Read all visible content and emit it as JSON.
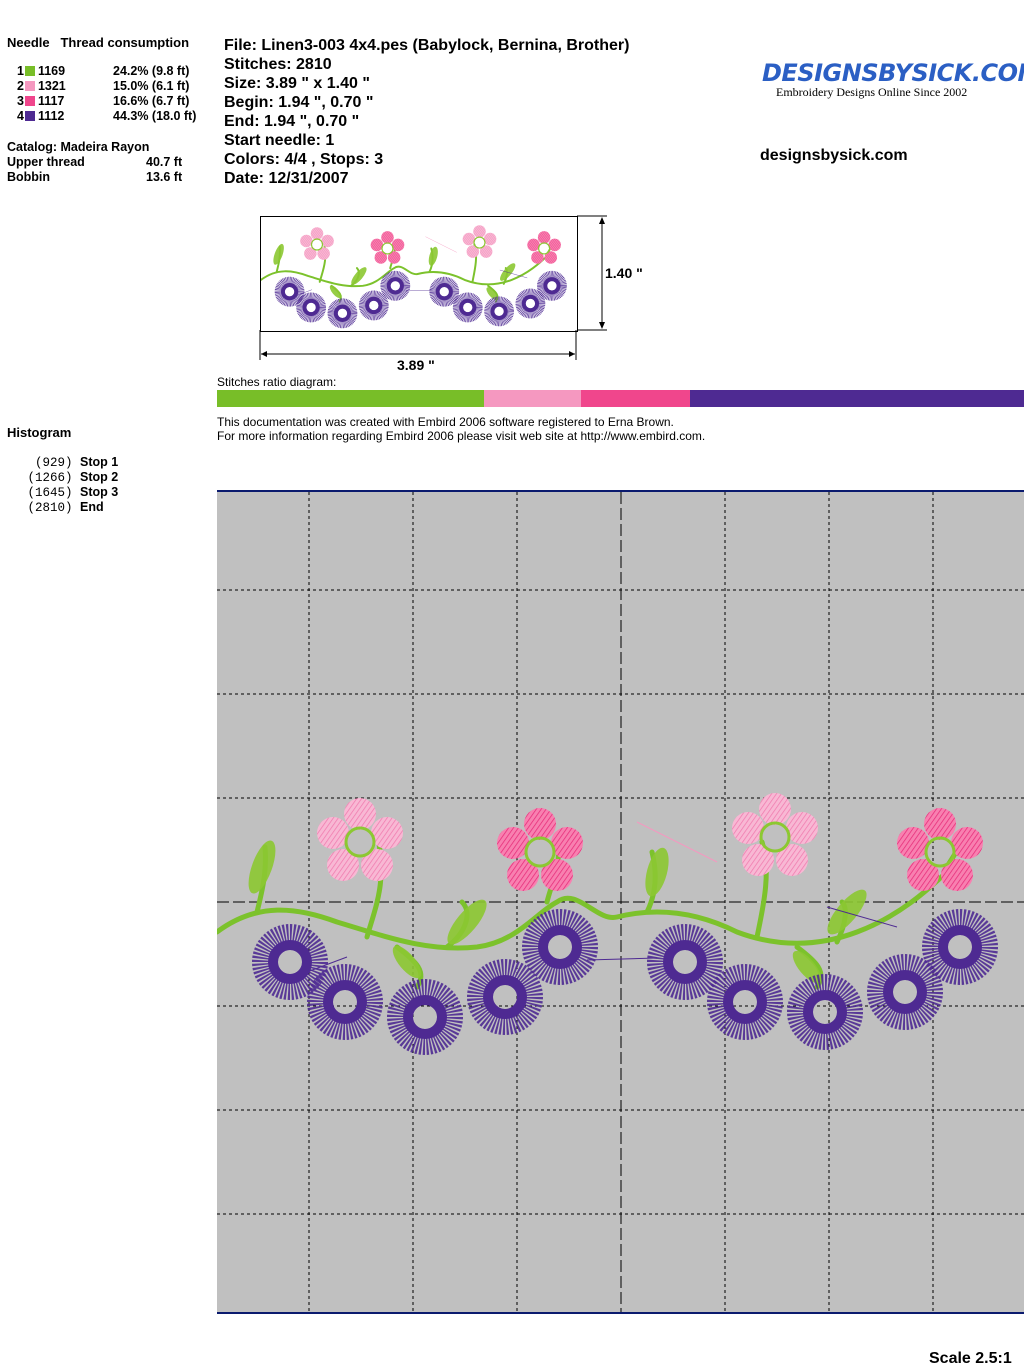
{
  "threads": {
    "header_needle": "Needle",
    "header_consumption": "Thread consumption",
    "items": [
      {
        "needle": "1",
        "code": "1169",
        "color": "#78be28",
        "consumption": "24.2% (9.8 ft)"
      },
      {
        "needle": "2",
        "code": "1321",
        "color": "#f598c0",
        "consumption": "15.0% (6.1 ft)"
      },
      {
        "needle": "3",
        "code": "1117",
        "color": "#f0468c",
        "consumption": "16.6% (6.7 ft)"
      },
      {
        "needle": "4",
        "code": "1112",
        "color": "#4e2a92",
        "consumption": "44.3% (18.0 ft)"
      }
    ],
    "catalog": "Catalog: Madeira Rayon",
    "upper_label": "Upper thread",
    "upper_value": "40.7 ft",
    "bobbin_label": "Bobbin",
    "bobbin_value": "13.6 ft"
  },
  "info": {
    "file": "File: Linen3-003 4x4.pes  (Babylock, Bernina, Brother)",
    "stitches": "Stitches: 2810",
    "size": "Size: 3.89 \" x 1.40 \"",
    "begin": "Begin: 1.94 \", 0.70 \"",
    "end": "End: 1.94 \", 0.70 \"",
    "start_needle": "Start needle: 1",
    "colors": "Colors: 4/4 , Stops: 3",
    "date": "Date: 12/31/2007"
  },
  "logo": {
    "text": "DesignsBySick.com",
    "tagline": "Embroidery Designs Online Since 2002"
  },
  "website": "designsbysick.com",
  "dimensions": {
    "height": "1.40 \"",
    "width": "3.89 \""
  },
  "ratio": {
    "label": "Stitches ratio diagram:",
    "segments": [
      {
        "color": "#78be28",
        "percent": 33.1
      },
      {
        "color": "#f598c0",
        "percent": 12.0
      },
      {
        "color": "#f0468c",
        "percent": 13.5
      },
      {
        "color": "#4e2a92",
        "percent": 41.4
      }
    ]
  },
  "notice": {
    "line1": "This documentation was created with Embird 2006 software registered to Erna Brown.",
    "line2": "For more information regarding Embird 2006 please visit web site at http://www.embird.com."
  },
  "histogram": {
    "title": "Histogram",
    "items": [
      {
        "count": "  (929)",
        "label": "Stop 1"
      },
      {
        "count": " (1266)",
        "label": "Stop 2"
      },
      {
        "count": " (1645)",
        "label": "Stop 3"
      },
      {
        "count": " (2810)",
        "label": "End"
      }
    ]
  },
  "scale": "Scale 2.5:1"
}
